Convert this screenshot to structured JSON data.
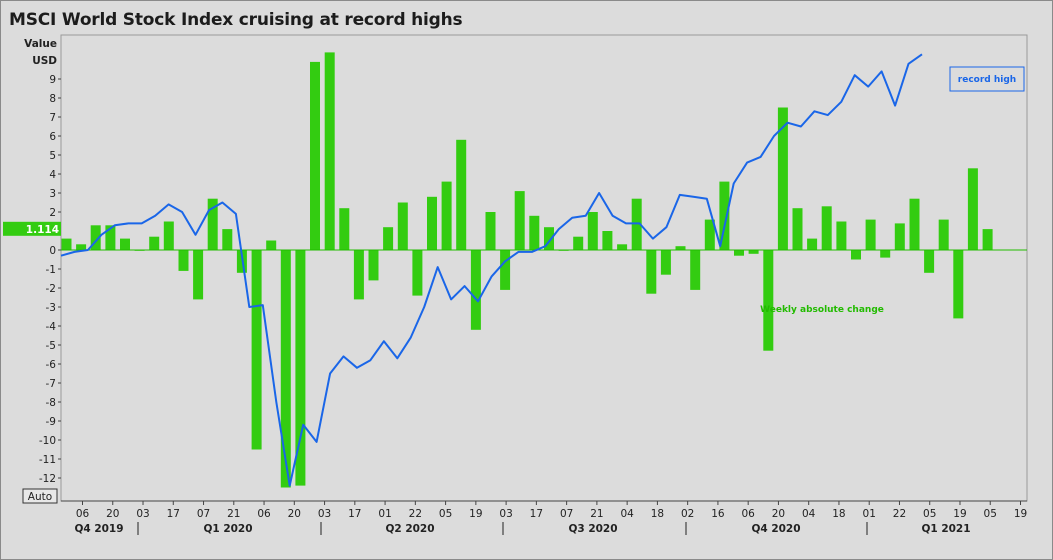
{
  "title": "MSCI World Stock Index cruising at record highs",
  "y_axis_heading": [
    "Value",
    "USD"
  ],
  "auto_button": "Auto",
  "current_value_label": "1.114",
  "chart_data": {
    "type": "bar+line",
    "title": "MSCI World Stock Index cruising at record highs",
    "xlabel": "",
    "ylabel": "Value USD",
    "ylim": [
      -12.5,
      11
    ],
    "y_ticks": [
      9,
      8,
      7,
      6,
      5,
      4,
      3,
      2,
      1,
      0,
      -1,
      -2,
      -3,
      -4,
      -5,
      -6,
      -7,
      -8,
      -9,
      -10,
      -11,
      -12
    ],
    "x_tick_labels": [
      "06",
      "20",
      "03",
      "17",
      "07",
      "21",
      "06",
      "20",
      "03",
      "17",
      "01",
      "22",
      "05",
      "19",
      "03",
      "17",
      "07",
      "21",
      "04",
      "18",
      "02",
      "16",
      "06",
      "20",
      "04",
      "18",
      "01",
      "22",
      "05",
      "19",
      "05",
      "19"
    ],
    "quarter_labels": [
      "Q4 2019",
      "Q1 2020",
      "Q2 2020",
      "Q3 2020",
      "Q4 2020",
      "Q1 2021"
    ],
    "colors": {
      "bars": "#33cc11",
      "line": "#1a66e8",
      "zero_line": "#22bb00",
      "background": "#dcdcdc"
    },
    "annotations": [
      {
        "text": "record high",
        "color": "#1a66e8",
        "boxed": true
      },
      {
        "text": "Weekly absolute change",
        "color": "#22bb00",
        "boxed": false
      }
    ],
    "series": [
      {
        "name": "Weekly absolute change",
        "kind": "bar",
        "values": [
          0.6,
          0.3,
          1.3,
          1.3,
          0.6,
          0.0,
          0.7,
          1.5,
          -1.1,
          -2.6,
          2.7,
          1.1,
          -1.2,
          -10.5,
          0.5,
          -12.5,
          -12.4,
          9.9,
          10.4,
          2.2,
          -2.6,
          -1.6,
          1.2,
          2.5,
          -2.4,
          2.8,
          3.6,
          5.8,
          -4.2,
          2.0,
          -2.1,
          3.1,
          1.8,
          1.2,
          0.0,
          0.7,
          2.0,
          1.0,
          0.3,
          2.7,
          -2.3,
          -1.3,
          0.2,
          -2.1,
          1.6,
          3.6,
          -0.3,
          -0.2,
          -5.3,
          7.5,
          2.2,
          0.6,
          2.3,
          1.5,
          -0.5,
          1.6,
          -0.4,
          1.4,
          2.7,
          -1.2,
          1.6,
          -3.6,
          4.3,
          1.1
        ]
      },
      {
        "name": "",
        "kind": "line",
        "values": [
          -0.3,
          -0.1,
          0.0,
          0.8,
          1.3,
          1.4,
          1.4,
          1.8,
          2.4,
          2.0,
          0.8,
          2.1,
          2.5,
          1.9,
          -3.0,
          -2.9,
          -8.0,
          -12.4,
          -9.2,
          -10.1,
          -6.5,
          -5.6,
          -6.2,
          -5.8,
          -4.8,
          -5.7,
          -4.6,
          -3.0,
          -0.9,
          -2.6,
          -1.9,
          -2.7,
          -1.4,
          -0.6,
          -0.1,
          -0.1,
          0.2,
          1.1,
          1.7,
          1.8,
          3.0,
          1.8,
          1.4,
          1.4,
          0.6,
          1.2,
          2.9,
          2.8,
          2.7,
          0.2,
          3.5,
          4.6,
          4.9,
          6.0,
          6.7,
          6.5,
          7.3,
          7.1,
          7.8,
          9.2,
          8.6,
          9.4,
          7.6,
          9.8,
          10.3
        ]
      }
    ]
  }
}
